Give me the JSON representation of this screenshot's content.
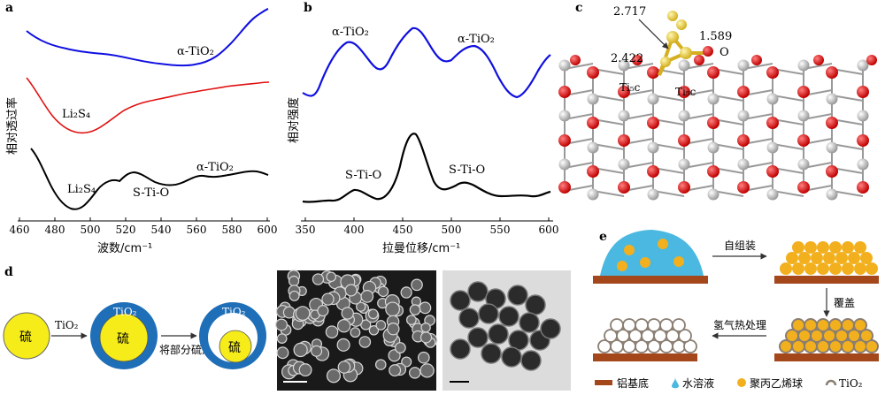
{
  "panel_a": {
    "letter": "a",
    "ylabel": "相对透过率",
    "xlabel": "波数/cm⁻¹",
    "xticks": [
      "460",
      "480",
      "500",
      "520",
      "540",
      "560",
      "580",
      "600"
    ],
    "labels": {
      "top_alpha": "α-TiO₂",
      "mid_li2s4": "Li₂S₄",
      "bot_li2s4": "Li₂S₄",
      "bot_stio": "S-Ti-O",
      "bot_alpha": "α-TiO₂"
    },
    "colors": {
      "top": "#1010e0",
      "mid": "#e01010",
      "bot": "#000000"
    }
  },
  "panel_b": {
    "letter": "b",
    "ylabel": "相对强度",
    "xlabel": "拉曼位移/cm⁻¹",
    "xticks": [
      "350",
      "400",
      "450",
      "500",
      "550",
      "600"
    ],
    "labels": {
      "alpha1": "α-TiO₂",
      "alpha2": "α-TiO₂",
      "stio1": "S-Ti-O",
      "stio2": "S-Ti-O"
    },
    "colors": {
      "top": "#1010e0",
      "bot": "#000000"
    }
  },
  "panel_c": {
    "letter": "c",
    "labels": {
      "d1": "2.717",
      "d2": "1.589",
      "d3": "2.422",
      "o": "O",
      "ti1": "Ti₅c",
      "ti2": "Ti₅c"
    },
    "colors": {
      "oxygen": "#d81010",
      "titanium": "#c8c8c8",
      "sulfur": "#e8d040"
    }
  },
  "panel_d": {
    "letter": "d",
    "labels": {
      "sulfur": "硫",
      "tio2": "TiO₂",
      "step": "将部分硫溶解"
    },
    "colors": {
      "sulfur": "#f5ec1a",
      "shell": "#1f6fb8"
    }
  },
  "panel_e": {
    "letter": "e",
    "steps": {
      "self_assembly": "自组装",
      "cover": "覆盖",
      "hydrogen": "氢气热处理"
    },
    "legend": [
      {
        "icon": "substrate",
        "label": "铝基底"
      },
      {
        "icon": "water-drop",
        "label": "水溶液"
      },
      {
        "icon": "pp-sphere",
        "label": "聚丙乙烯球"
      },
      {
        "icon": "tio2-shell",
        "label": "TiO₂"
      }
    ],
    "colors": {
      "substrate": "#a4481c",
      "water": "#4ab8e0",
      "spheres": "#f2b01e"
    }
  }
}
